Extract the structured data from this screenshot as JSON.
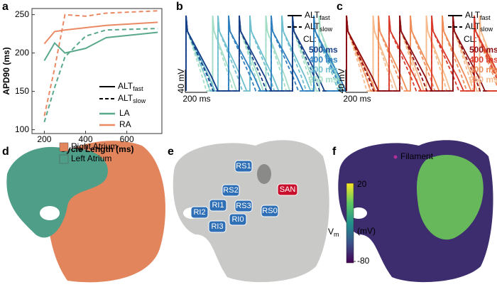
{
  "panels": [
    "a",
    "b",
    "c",
    "d",
    "e",
    "f"
  ],
  "chart_data": [
    {
      "type": "line",
      "xlabel": "Cycle Length (ms)",
      "ylabel": "APD90 (ms)",
      "x": [
        200,
        250,
        300,
        400,
        500,
        750
      ],
      "xlim": [
        140,
        770
      ],
      "ylim": [
        95,
        258
      ],
      "xticks": [
        200,
        400,
        600
      ],
      "yticks": [
        100,
        150,
        200,
        250
      ],
      "styles": [
        {
          "label": "ALT",
          "sub": "fast",
          "dash": false
        },
        {
          "label": "ALT",
          "sub": "slow",
          "dash": true
        }
      ],
      "series": [
        {
          "name": "LA",
          "color": "#5aa98b",
          "fast": [
            190,
            213,
            200,
            206,
            220,
            227
          ],
          "slow": [
            110,
            155,
            195,
            222,
            230,
            232
          ]
        },
        {
          "name": "RA",
          "color": "#ea8a64",
          "fast": [
            212,
            228,
            230,
            233,
            236,
            240
          ],
          "slow": [
            118,
            180,
            250,
            248,
            252,
            255
          ]
        }
      ]
    },
    {
      "type": "trace",
      "scale_v": "40 mV",
      "scale_t": "200 ms",
      "styles": [
        {
          "label": "ALT",
          "sub": "fast"
        },
        {
          "label": "ALT",
          "sub": "slow"
        }
      ],
      "legend_title": "CL:",
      "cl": [
        {
          "value": 500,
          "label": "500 ms",
          "color": "#173f87"
        },
        {
          "value": 400,
          "label": "400 ms",
          "color": "#2f7fc0"
        },
        {
          "value": 300,
          "label": "300 ms",
          "color": "#6fbfcf"
        },
        {
          "value": 250,
          "label": "250 ms",
          "color": "#a3ddc6"
        }
      ]
    },
    {
      "type": "trace",
      "scale_v": "40 mV",
      "scale_t": "200 ms",
      "styles": [
        {
          "label": "ALT",
          "sub": "fast"
        },
        {
          "label": "ALT",
          "sub": "slow"
        }
      ],
      "legend_title": "CL:",
      "cl": [
        {
          "value": 500,
          "label": "500 ms",
          "color": "#8b0e12"
        },
        {
          "value": 400,
          "label": "400 ms",
          "color": "#d93a2b"
        },
        {
          "value": 300,
          "label": "300 ms",
          "color": "#ef8c58"
        },
        {
          "value": 250,
          "label": "250 ms",
          "color": "#f6bb8c"
        }
      ]
    }
  ],
  "atria": {
    "legend": [
      {
        "label": "Right Atrium",
        "color": "#e2855d"
      },
      {
        "label": "Left Atrium",
        "color": "#4f9e88"
      }
    ]
  },
  "sites": {
    "labels": [
      "RS1",
      "RS2",
      "SAN",
      "RS3",
      "RI1",
      "RI2",
      "RS0",
      "RI0",
      "RI3"
    ]
  },
  "potential": {
    "legend": "Filament",
    "colorbar": {
      "ticks": [
        20,
        -80
      ],
      "label": "V",
      "sub": "m",
      "unit": "(mV)"
    }
  }
}
